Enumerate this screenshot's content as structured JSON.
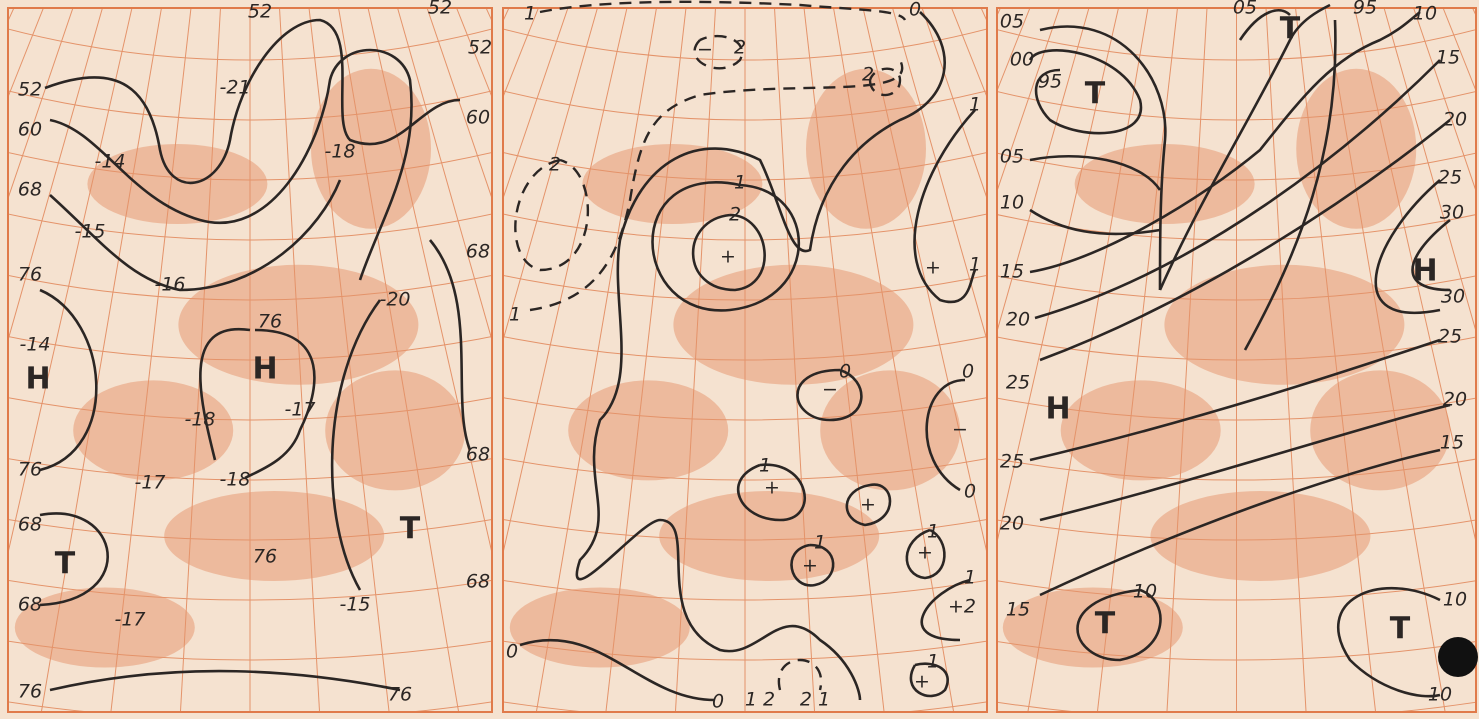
{
  "panels": [
    {
      "labels": [
        "52",
        "52",
        "52",
        "52",
        "60",
        "60",
        "68",
        "68",
        "68",
        "68",
        "68",
        "68",
        "76",
        "76",
        "76",
        "76",
        "76",
        "76",
        "-21",
        "-14",
        "-15",
        "-16",
        "-18",
        "-20",
        "-14",
        "-18",
        "-17",
        "-17",
        "-18",
        "-15",
        "-17",
        "Н",
        "Н",
        "Т",
        "Т"
      ]
    },
    {
      "labels": [
        "1",
        "2",
        "2",
        "0",
        "2",
        "1",
        "1",
        "2",
        "+",
        "1",
        "1",
        "+",
        "0",
        "−",
        "0",
        "−",
        "0",
        "1",
        "+",
        "+",
        "1",
        "+",
        "1",
        "+",
        "1",
        "+2",
        "1",
        "+",
        "0",
        "0",
        "1 2",
        "2 1",
        "−"
      ]
    },
    {
      "labels": [
        "05",
        "00",
        "95",
        "05",
        "10",
        "15",
        "20",
        "25",
        "25",
        "20",
        "15",
        "05",
        "95",
        "10",
        "15",
        "20",
        "25",
        "30",
        "30",
        "25",
        "20",
        "15",
        "10",
        "10",
        "10",
        "Т",
        "Т",
        "Н",
        "Н",
        "Т",
        "Т"
      ]
    }
  ]
}
